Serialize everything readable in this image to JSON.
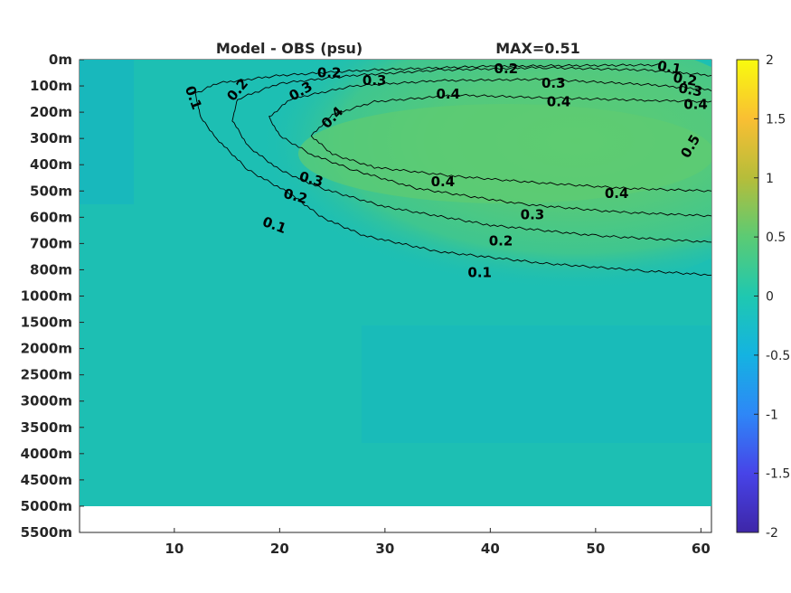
{
  "chart_data": {
    "type": "heatmap",
    "title": "Model - OBS (psu)",
    "subtitle": "MAX=0.51",
    "max_value": 0.51,
    "xlabel": "",
    "ylabel": "",
    "x_ticks": [
      10,
      20,
      30,
      40,
      50,
      60
    ],
    "xlim": [
      1,
      61
    ],
    "y_ticks": [
      "0m",
      "100m",
      "200m",
      "300m",
      "400m",
      "500m",
      "600m",
      "700m",
      "800m",
      "1000m",
      "1500m",
      "2000m",
      "2500m",
      "3000m",
      "3500m",
      "4000m",
      "4500m",
      "5000m",
      "5500m"
    ],
    "y_data_bottom_label": "5000m",
    "colorbar": {
      "range": [
        -2,
        2
      ],
      "ticks": [
        "2",
        "1.5",
        "1",
        "0.5",
        "0",
        "-0.5",
        "-1",
        "-1.5",
        "-2"
      ],
      "colormap": "parula",
      "colors": [
        "#3e26a8",
        "#4744e8",
        "#2e87f7",
        "#14b3e1",
        "#1fc8b0",
        "#5bcb74",
        "#b6bd3a",
        "#f9bf33",
        "#f9fb0e"
      ]
    },
    "background_value_color": "#1cbdb5",
    "contour_levels": [
      0.1,
      0.2,
      0.3,
      0.4
    ],
    "contours": [
      {
        "level": 0.1,
        "points": [
          [
            56,
            0.2
          ],
          [
            40,
            0.25
          ],
          [
            28,
            0.4
          ],
          [
            20,
            0.6
          ],
          [
            14,
            0.9
          ],
          [
            12,
            1.3
          ],
          [
            12.5,
            2.2
          ],
          [
            14,
            3.0
          ],
          [
            17,
            4.2
          ],
          [
            21,
            5.1
          ],
          [
            24,
            6.0
          ],
          [
            28,
            6.7
          ],
          [
            35,
            7.3
          ],
          [
            45,
            7.75
          ],
          [
            55,
            8.05
          ],
          [
            61,
            8.2
          ]
        ]
      },
      {
        "level": 0.2,
        "points": [
          [
            61,
            0.6
          ],
          [
            55,
            0.4
          ],
          [
            45,
            0.3
          ],
          [
            35,
            0.4
          ],
          [
            27,
            0.6
          ],
          [
            20,
            0.9
          ],
          [
            16,
            1.5
          ],
          [
            15.5,
            2.3
          ],
          [
            17,
            3.3
          ],
          [
            20,
            4.2
          ],
          [
            24,
            4.9
          ],
          [
            30,
            5.6
          ],
          [
            40,
            6.3
          ],
          [
            50,
            6.7
          ],
          [
            61,
            6.95
          ]
        ]
      },
      {
        "level": 0.3,
        "points": [
          [
            61,
            1.15
          ],
          [
            55,
            0.95
          ],
          [
            45,
            0.75
          ],
          [
            35,
            0.8
          ],
          [
            27,
            1.0
          ],
          [
            21,
            1.5
          ],
          [
            19,
            2.2
          ],
          [
            20,
            2.9
          ],
          [
            23,
            3.6
          ],
          [
            27,
            4.2
          ],
          [
            33,
            4.9
          ],
          [
            43,
            5.5
          ],
          [
            52,
            5.8
          ],
          [
            61,
            5.95
          ]
        ]
      },
      {
        "level": 0.4,
        "points": [
          [
            61,
            1.6
          ],
          [
            55,
            1.55
          ],
          [
            45,
            1.45
          ],
          [
            37,
            1.35
          ],
          [
            29,
            1.6
          ],
          [
            25,
            2.1
          ],
          [
            23,
            2.9
          ],
          [
            25,
            3.6
          ],
          [
            29,
            4.1
          ],
          [
            37,
            4.45
          ],
          [
            45,
            4.7
          ],
          [
            53,
            4.9
          ],
          [
            61,
            5.0
          ]
        ]
      }
    ],
    "contour_label_positions": [
      {
        "text": "0.1",
        "x": 11.8,
        "y": 1.45,
        "rot": 70
      },
      {
        "text": "0.2",
        "x": 16.0,
        "y": 1.15,
        "rot": -50
      },
      {
        "text": "0.3",
        "x": 22.0,
        "y": 1.2,
        "rot": -30
      },
      {
        "text": "0.2",
        "x": 24.7,
        "y": 0.5,
        "rot": 0
      },
      {
        "text": "0.3",
        "x": 29.0,
        "y": 0.8,
        "rot": 0
      },
      {
        "text": "0.4",
        "x": 25.0,
        "y": 2.2,
        "rot": -45
      },
      {
        "text": "0.4",
        "x": 36.0,
        "y": 1.3,
        "rot": 0
      },
      {
        "text": "0.2",
        "x": 41.5,
        "y": 0.35,
        "rot": 0
      },
      {
        "text": "0.3",
        "x": 46.0,
        "y": 0.9,
        "rot": 0
      },
      {
        "text": "0.4",
        "x": 46.5,
        "y": 1.6,
        "rot": 0
      },
      {
        "text": "0.1",
        "x": 57.0,
        "y": 0.3,
        "rot": 10
      },
      {
        "text": "0.2",
        "x": 58.5,
        "y": 0.75,
        "rot": 10
      },
      {
        "text": "0.3",
        "x": 59.0,
        "y": 1.15,
        "rot": 10
      },
      {
        "text": "0.4",
        "x": 59.5,
        "y": 1.7,
        "rot": 0
      },
      {
        "text": "0.5",
        "x": 59.0,
        "y": 3.3,
        "rot": -60
      },
      {
        "text": "0.4",
        "x": 35.5,
        "y": 4.65,
        "rot": 0
      },
      {
        "text": "0.3",
        "x": 23.0,
        "y": 4.55,
        "rot": 15
      },
      {
        "text": "0.4",
        "x": 52.0,
        "y": 5.1,
        "rot": 0
      },
      {
        "text": "0.2",
        "x": 21.5,
        "y": 5.2,
        "rot": 15
      },
      {
        "text": "0.3",
        "x": 44.0,
        "y": 5.9,
        "rot": 0
      },
      {
        "text": "0.1",
        "x": 19.5,
        "y": 6.3,
        "rot": 20
      },
      {
        "text": "0.2",
        "x": 41.0,
        "y": 6.9,
        "rot": 0
      },
      {
        "text": "0.1",
        "x": 39.0,
        "y": 8.1,
        "rot": 0
      }
    ]
  }
}
